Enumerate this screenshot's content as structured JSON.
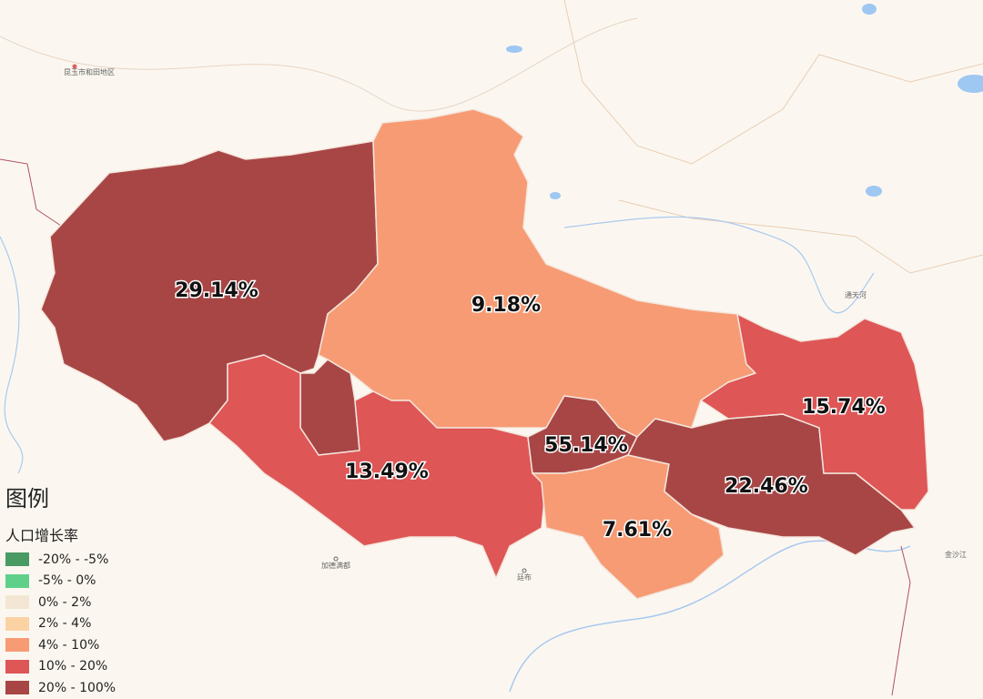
{
  "map": {
    "regions": [
      {
        "name": "ngari",
        "value_label": "29.14%",
        "color": "#a84646"
      },
      {
        "name": "nagqu",
        "value_label": "9.18%",
        "color": "#f79b74"
      },
      {
        "name": "shigatse",
        "value_label": "13.49%",
        "color": "#de5656"
      },
      {
        "name": "lhasa",
        "value_label": "55.14%",
        "color": "#a84646"
      },
      {
        "name": "shannan",
        "value_label": "7.61%",
        "color": "#f79b74"
      },
      {
        "name": "nyingchi",
        "value_label": "22.46%",
        "color": "#a84646"
      },
      {
        "name": "chamdo",
        "value_label": "15.74%",
        "color": "#de5656"
      }
    ],
    "basemap_labels": [
      "昆玉市",
      "和田地区",
      "通天河",
      "加德满都",
      "廷布",
      "金沙江"
    ]
  },
  "legend": {
    "title": "图例",
    "subtitle": "人口增长率",
    "items": [
      {
        "label": "-20% - -5%",
        "color": "#4a9a64"
      },
      {
        "label": "-5% - 0%",
        "color": "#5fd08a"
      },
      {
        "label": "0% - 2%",
        "color": "#f4e6d4"
      },
      {
        "label": "2% - 4%",
        "color": "#fbd2a4"
      },
      {
        "label": "4% - 10%",
        "color": "#f79b74"
      },
      {
        "label": "10% - 20%",
        "color": "#de5656"
      },
      {
        "label": "20% - 100%",
        "color": "#a84646"
      }
    ]
  }
}
